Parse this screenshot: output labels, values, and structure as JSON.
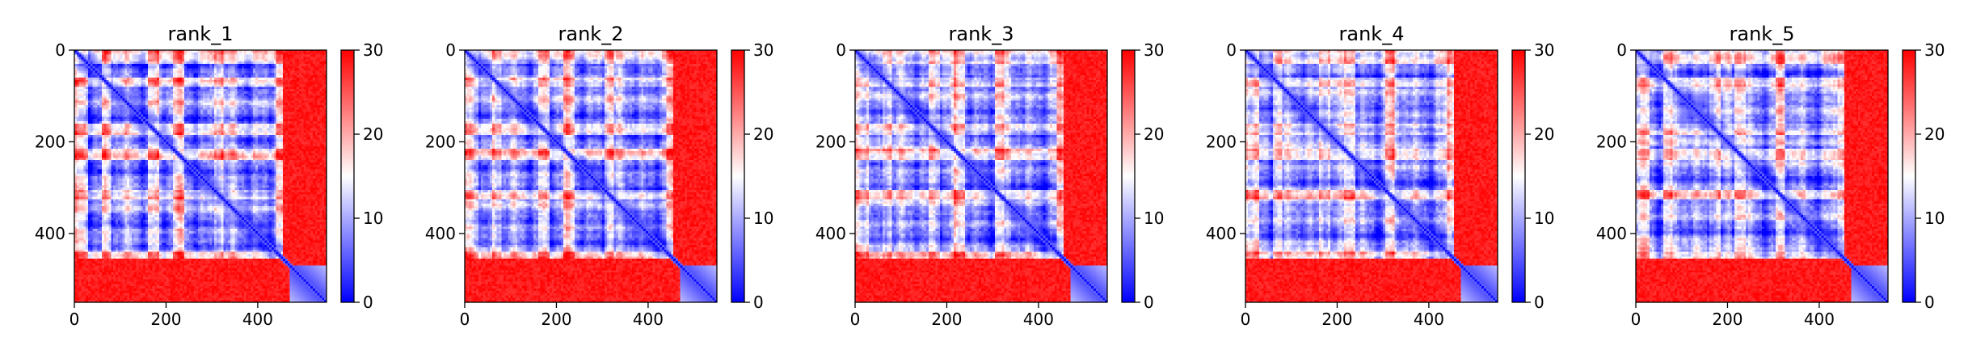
{
  "chart_data": [
    {
      "type": "heatmap",
      "title": "rank_1",
      "xlabel": "",
      "ylabel": "",
      "xlim": [
        0,
        550
      ],
      "ylim": [
        550,
        0
      ],
      "xticks": [
        0,
        200,
        400
      ],
      "yticks": [
        0,
        200,
        400
      ],
      "colorbar": {
        "vmin": 0,
        "vmax": 30,
        "ticks": [
          0,
          10,
          20,
          30
        ],
        "colormap": "bwr"
      },
      "values_description": "symmetric PAE-style matrix, low values along diagonal and in residues 0-450 block, high values beyond 450"
    },
    {
      "type": "heatmap",
      "title": "rank_2",
      "xlabel": "",
      "ylabel": "",
      "xlim": [
        0,
        550
      ],
      "ylim": [
        550,
        0
      ],
      "xticks": [
        0,
        200,
        400
      ],
      "yticks": [
        0,
        200,
        400
      ],
      "colorbar": {
        "vmin": 0,
        "vmax": 30,
        "ticks": [
          0,
          10,
          20,
          30
        ],
        "colormap": "bwr"
      }
    },
    {
      "type": "heatmap",
      "title": "rank_3",
      "xlabel": "",
      "ylabel": "",
      "xlim": [
        0,
        550
      ],
      "ylim": [
        550,
        0
      ],
      "xticks": [
        0,
        200,
        400
      ],
      "yticks": [
        0,
        200,
        400
      ],
      "colorbar": {
        "vmin": 0,
        "vmax": 30,
        "ticks": [
          0,
          10,
          20,
          30
        ],
        "colormap": "bwr"
      }
    },
    {
      "type": "heatmap",
      "title": "rank_4",
      "xlabel": "",
      "ylabel": "",
      "xlim": [
        0,
        550
      ],
      "ylim": [
        550,
        0
      ],
      "xticks": [
        0,
        200,
        400
      ],
      "yticks": [
        0,
        200,
        400
      ],
      "colorbar": {
        "vmin": 0,
        "vmax": 30,
        "ticks": [
          0,
          10,
          20,
          30
        ],
        "colormap": "bwr"
      }
    },
    {
      "type": "heatmap",
      "title": "rank_5",
      "xlabel": "",
      "ylabel": "",
      "xlim": [
        0,
        550
      ],
      "ylim": [
        550,
        0
      ],
      "xticks": [
        0,
        200,
        400
      ],
      "yticks": [
        0,
        200,
        400
      ],
      "colorbar": {
        "vmin": 0,
        "vmax": 30,
        "ticks": [
          0,
          10,
          20,
          30
        ],
        "colormap": "bwr"
      }
    }
  ],
  "colors": {
    "low": "#0000ff",
    "mid": "#ffffff",
    "high": "#ff0000"
  }
}
